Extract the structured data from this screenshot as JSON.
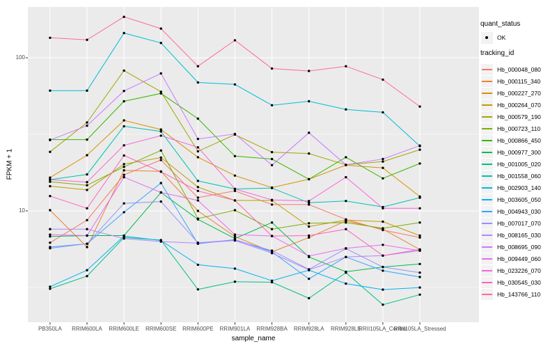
{
  "figure": {
    "background": "#FFFFFF",
    "panel_background": "#EBEBEB",
    "grid_color": "#FFFFFF",
    "tick_color": "#333333",
    "axis_text_color": "#4D4D4D",
    "point_color": "#000000",
    "legend_key_fill": "#F2F2F2"
  },
  "chart_data": {
    "type": "line",
    "title": "",
    "xlabel": "sample_name",
    "ylabel": "FPKM + 1",
    "y_scale": "log10",
    "grid": "on",
    "legend_position": "right",
    "y_ticks": [
      {
        "label": "100",
        "value": 100
      },
      {
        "label": "10",
        "value": 10
      }
    ],
    "y_minor_values": [
      31.623,
      3.1623
    ],
    "ylim_log_mapping": {
      "value_100_y": 83,
      "value_10_y": 303
    },
    "categories": [
      "PB350LA",
      "RRIM600LA",
      "RRIM600LE",
      "RRIM600SE",
      "RRIM600PE",
      "RRIM901LA",
      "RRIM928BA",
      "RRIM928LA",
      "RRIM928LE",
      "RRII105LA_Control",
      "RRII105LA_Stressed"
    ],
    "legend": {
      "quant_status_title": "quant_status",
      "quant_status_items": [
        {
          "label": "OK",
          "marker": "point",
          "color": "#000000"
        }
      ],
      "tracking_title": "tracking_id"
    },
    "series": [
      {
        "name": "Hb_000048_080",
        "color": "#F8766D",
        "values": [
          6.2,
          8.7,
          17.2,
          21.5,
          12.2,
          13.5,
          11.0,
          11.0,
          8.8,
          7.5,
          6.7
        ]
      },
      {
        "name": "Hb_000115_340",
        "color": "#EA8331",
        "values": [
          10.1,
          5.8,
          18.4,
          18.1,
          10.0,
          6.8,
          5.4,
          6.7,
          8.6,
          7.6,
          5.6
        ]
      },
      {
        "name": "Hb_000227_270",
        "color": "#D89000",
        "values": [
          16.5,
          23.1,
          39.0,
          34.0,
          22.4,
          17.0,
          14.2,
          16.1,
          19.9,
          19.1,
          12.4
        ]
      },
      {
        "name": "Hb_000264_070",
        "color": "#C09B00",
        "values": [
          14.5,
          13.7,
          20.2,
          22.3,
          14.3,
          11.7,
          11.7,
          7.9,
          8.7,
          8.5,
          6.9
        ]
      },
      {
        "name": "Hb_000579_190",
        "color": "#A3A500",
        "values": [
          24.3,
          37.8,
          82.5,
          60.0,
          24.5,
          31.5,
          24.2,
          23.7,
          20.0,
          21.0,
          25.1
        ]
      },
      {
        "name": "Hb_000723_110",
        "color": "#7CAE00",
        "values": [
          15.5,
          14.7,
          19.4,
          24.8,
          8.9,
          10.1,
          7.6,
          8.3,
          8.4,
          7.7,
          8.4
        ]
      },
      {
        "name": "Hb_000866_450",
        "color": "#39B600",
        "values": [
          29.2,
          29.2,
          52.0,
          58.5,
          40.0,
          22.8,
          21.8,
          16.1,
          22.4,
          16.3,
          20.4
        ]
      },
      {
        "name": "Hb_000977_300",
        "color": "#00BB4E",
        "values": [
          6.8,
          6.9,
          6.9,
          13.2,
          8.8,
          6.6,
          8.4,
          5.0,
          4.0,
          4.3,
          4.5
        ]
      },
      {
        "name": "Hb_001005_020",
        "color": "#00C087",
        "values": [
          3.1,
          3.75,
          6.7,
          6.45,
          3.07,
          3.45,
          3.42,
          2.69,
          3.95,
          2.44,
          2.84
        ]
      },
      {
        "name": "Hb_001558_060",
        "color": "#00C0AF",
        "values": [
          16.0,
          17.3,
          35.7,
          33.0,
          15.7,
          13.9,
          14.1,
          11.3,
          11.6,
          10.6,
          12.2
        ]
      },
      {
        "name": "Hb_002903_140",
        "color": "#00BCD8",
        "values": [
          61,
          61,
          145,
          125,
          69,
          67,
          49,
          52,
          46,
          44,
          26.5
        ]
      },
      {
        "name": "Hb_003605_050",
        "color": "#00B0F6",
        "values": [
          3.2,
          4.1,
          6.85,
          6.4,
          4.45,
          4.2,
          3.5,
          4.1,
          3.35,
          3.06,
          3.16
        ]
      },
      {
        "name": "Hb_004943_030",
        "color": "#35A2FF",
        "values": [
          5.8,
          6.1,
          9.8,
          15.2,
          6.1,
          6.5,
          5.4,
          3.6,
          5.0,
          4.07,
          3.7
        ]
      },
      {
        "name": "Hb_007017_070",
        "color": "#9590FF",
        "values": [
          5.7,
          6.1,
          11.2,
          11.5,
          6.2,
          6.45,
          5.5,
          4.15,
          5.67,
          4.3,
          3.95
        ]
      },
      {
        "name": "Hb_008165_030",
        "color": "#AE87FF",
        "values": [
          7.6,
          7.6,
          6.6,
          6.3,
          6.15,
          6.4,
          5.3,
          4.12,
          5.0,
          5.1,
          5.5
        ]
      },
      {
        "name": "Hb_008695_090",
        "color": "#CD79FF",
        "values": [
          29.0,
          36.0,
          60.7,
          79.0,
          29.5,
          31.8,
          19.9,
          32.4,
          20.0,
          21.8,
          26.7
        ]
      },
      {
        "name": "Hb_009449_060",
        "color": "#E76BF3",
        "values": [
          7.0,
          6.9,
          16.6,
          13.2,
          11.7,
          7.0,
          6.85,
          5.07,
          5.7,
          6.0,
          5.5
        ]
      },
      {
        "name": "Hb_023226_070",
        "color": "#FA62DB",
        "values": [
          16.0,
          15.4,
          26.8,
          31.0,
          26.0,
          13.9,
          11.8,
          11.6,
          16.6,
          10.4,
          10.4
        ]
      },
      {
        "name": "Hb_030545_030",
        "color": "#FF62BC",
        "values": [
          12.5,
          10.4,
          23.0,
          18.0,
          13.5,
          11.7,
          6.85,
          6.9,
          7.6,
          5.1,
          5.6
        ]
      },
      {
        "name": "Hb_143766_110",
        "color": "#FF6A98",
        "values": [
          135,
          131,
          185,
          155,
          88,
          130,
          85,
          82,
          88,
          72,
          48
        ]
      }
    ]
  }
}
